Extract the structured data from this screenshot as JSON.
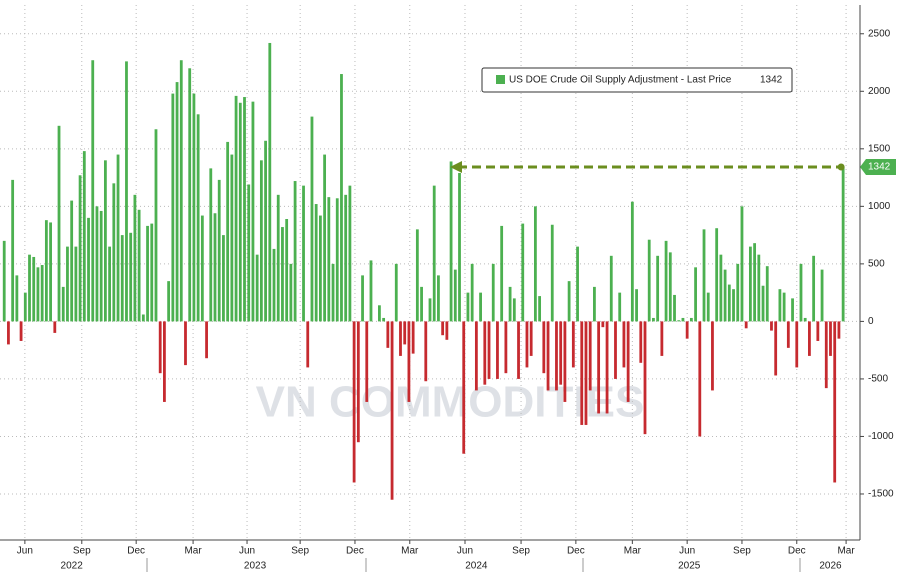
{
  "chart_data": {
    "type": "bar",
    "series": [
      {
        "name": "US DOE Crude Oil Supply Adjustment - Last Price",
        "color": "#4cb050",
        "negative_color": "#c62a2f",
        "values": [
          700,
          -200,
          1230,
          400,
          -170,
          250,
          580,
          560,
          470,
          490,
          880,
          860,
          -100,
          1700,
          300,
          650,
          1050,
          650,
          1270,
          1480,
          900,
          2270,
          1000,
          960,
          1400,
          650,
          1200,
          1450,
          750,
          2260,
          770,
          1100,
          970,
          60,
          830,
          850,
          1670,
          -450,
          -700,
          350,
          1980,
          2080,
          2270,
          -380,
          2200,
          1980,
          1800,
          920,
          -320,
          1330,
          940,
          1230,
          750,
          1560,
          1450,
          1960,
          1900,
          1950,
          1190,
          1910,
          580,
          1400,
          1570,
          2420,
          630,
          1100,
          820,
          890,
          500,
          1220,
          0,
          1180,
          -400,
          1780,
          1020,
          920,
          1450,
          1080,
          500,
          1070,
          2150,
          1100,
          1180,
          -1400,
          -1050,
          400,
          -700,
          530,
          0,
          140,
          30,
          -230,
          -1550,
          500,
          -300,
          -200,
          -700,
          -280,
          800,
          300,
          -520,
          200,
          1180,
          400,
          -120,
          -160,
          1390,
          450,
          1290,
          -1150,
          250,
          500,
          -600,
          250,
          -550,
          -500,
          500,
          -500,
          830,
          -450,
          300,
          200,
          -500,
          850,
          -400,
          -300,
          1000,
          220,
          -450,
          -600,
          840,
          -600,
          -550,
          -700,
          350,
          -400,
          650,
          -900,
          -900,
          -600,
          300,
          -800,
          -50,
          -800,
          570,
          -500,
          250,
          -400,
          -700,
          1040,
          280,
          -360,
          -980,
          710,
          30,
          570,
          -300,
          700,
          600,
          230,
          10,
          30,
          -150,
          30,
          470,
          -1000,
          800,
          250,
          -600,
          810,
          580,
          450,
          320,
          280,
          500,
          1000,
          -60,
          650,
          680,
          580,
          310,
          480,
          -80,
          -470,
          280,
          250,
          -230,
          200,
          -400,
          500,
          30,
          -300,
          570,
          -170,
          450,
          -580,
          -300,
          -1400,
          -150,
          1342
        ]
      }
    ],
    "xlim": [
      -1,
      203
    ],
    "ylim": [
      -1900,
      2750
    ],
    "yticks": [
      -1500,
      -1000,
      -500,
      0,
      500,
      1000,
      1500,
      2000,
      2500
    ],
    "xticks": [
      {
        "value": 4.9,
        "label": "Jun"
      },
      {
        "value": 18.4,
        "label": "Sep"
      },
      {
        "value": 31.3,
        "label": "Dec"
      },
      {
        "value": 44.8,
        "label": "Mar"
      },
      {
        "value": 57.6,
        "label": "Jun"
      },
      {
        "value": 70.2,
        "label": "Sep"
      },
      {
        "value": 83.2,
        "label": "Dec"
      },
      {
        "value": 96.2,
        "label": "Mar"
      },
      {
        "value": 109.3,
        "label": "Jun"
      },
      {
        "value": 122.6,
        "label": "Sep"
      },
      {
        "value": 135.6,
        "label": "Dec"
      },
      {
        "value": 149,
        "label": "Mar"
      },
      {
        "value": 162,
        "label": "Jun"
      },
      {
        "value": 175,
        "label": "Sep"
      },
      {
        "value": 188,
        "label": "Dec"
      },
      {
        "value": 199.7,
        "label": "Mar"
      }
    ],
    "year_ticks": [
      {
        "value": 16,
        "label": "2022"
      },
      {
        "value": 59.5,
        "label": "2023"
      },
      {
        "value": 112,
        "label": "2024"
      },
      {
        "value": 162.5,
        "label": "2025"
      },
      {
        "value": 196,
        "label": "2026"
      }
    ],
    "grid": true,
    "legend": "top-right",
    "watermark": "VN COMMODITIES"
  }
}
